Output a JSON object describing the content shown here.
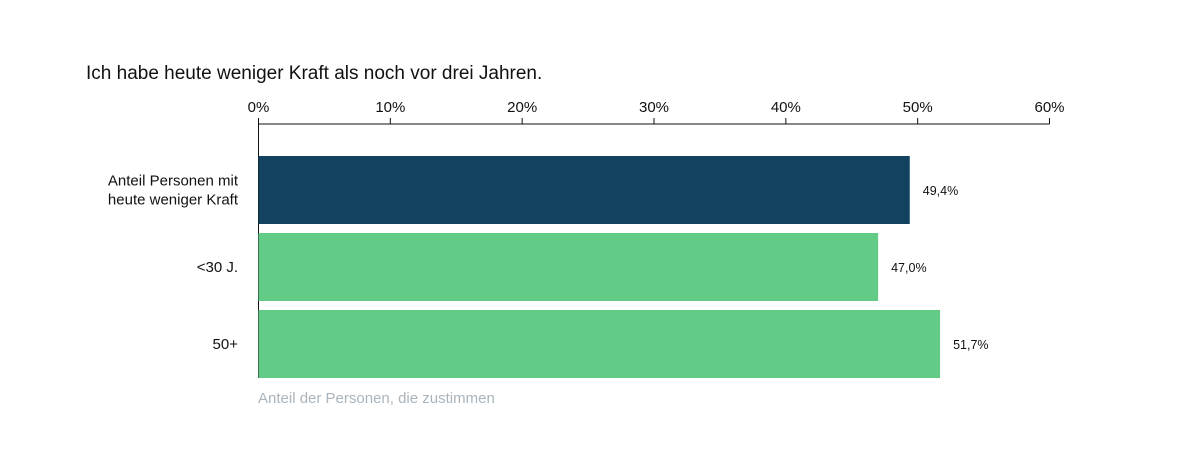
{
  "chart_data": {
    "type": "bar",
    "orientation": "horizontal",
    "title": "Ich habe heute weniger Kraft als noch vor drei Jahren.",
    "xlabel": "Anteil der Personen, die zustimmen",
    "ylabel": "",
    "xlim": [
      0,
      60
    ],
    "x_ticks": [
      0,
      10,
      20,
      30,
      40,
      50,
      60
    ],
    "x_tick_labels": [
      "0%",
      "10%",
      "20%",
      "30%",
      "40%",
      "50%",
      "60%"
    ],
    "x_axis_position": "top",
    "grid": false,
    "categories": [
      [
        "Anteil Personen mit",
        "heute weniger Kraft"
      ],
      [
        "<30 J."
      ],
      [
        "50+"
      ]
    ],
    "values": [
      49.4,
      47.0,
      51.7
    ],
    "value_labels": [
      "49,4%",
      "47,0%",
      "51,7%"
    ],
    "colors": [
      "#12425f",
      "#62cb86",
      "#62cb86"
    ]
  }
}
